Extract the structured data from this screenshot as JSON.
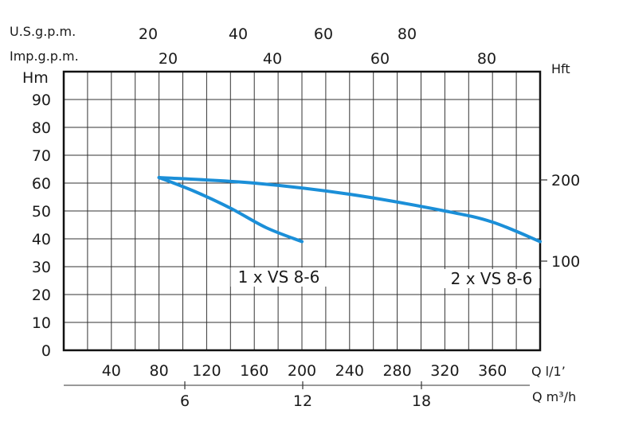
{
  "chart_data": {
    "type": "line",
    "x_unit_label": "Q l/1’",
    "y_unit_label": "Hm",
    "xlim": [
      0,
      400
    ],
    "ylim": [
      0,
      100
    ],
    "x_ticks": [
      40,
      80,
      120,
      160,
      200,
      240,
      280,
      320,
      360
    ],
    "y_ticks": [
      0,
      10,
      20,
      30,
      40,
      50,
      60,
      70,
      80,
      90
    ],
    "grid": true,
    "series": [
      {
        "name": "1 x VS 8-6",
        "color": "#1b8fd8",
        "points": [
          [
            80,
            62
          ],
          [
            110,
            57
          ],
          [
            140,
            51
          ],
          [
            170,
            44
          ],
          [
            200,
            39
          ]
        ]
      },
      {
        "name": "2 x VS 8-6",
        "color": "#1b8fd8",
        "points": [
          [
            80,
            62
          ],
          [
            160,
            60
          ],
          [
            240,
            56
          ],
          [
            320,
            50
          ],
          [
            360,
            46
          ],
          [
            400,
            39
          ]
        ]
      }
    ],
    "secondary_axes": {
      "usgpm": {
        "label": "U.S.g.p.m.",
        "ticks": [
          "20",
          "40",
          "60",
          "80"
        ]
      },
      "impgpm": {
        "label": "Imp.g.p.m.",
        "ticks": [
          "20",
          "40",
          "60",
          "80"
        ]
      },
      "hft": {
        "label": "Hft",
        "ticks": [
          "200",
          "100"
        ]
      },
      "m3h": {
        "label": "Q m³/h",
        "ticks": [
          "6",
          "12",
          "18"
        ]
      }
    }
  }
}
